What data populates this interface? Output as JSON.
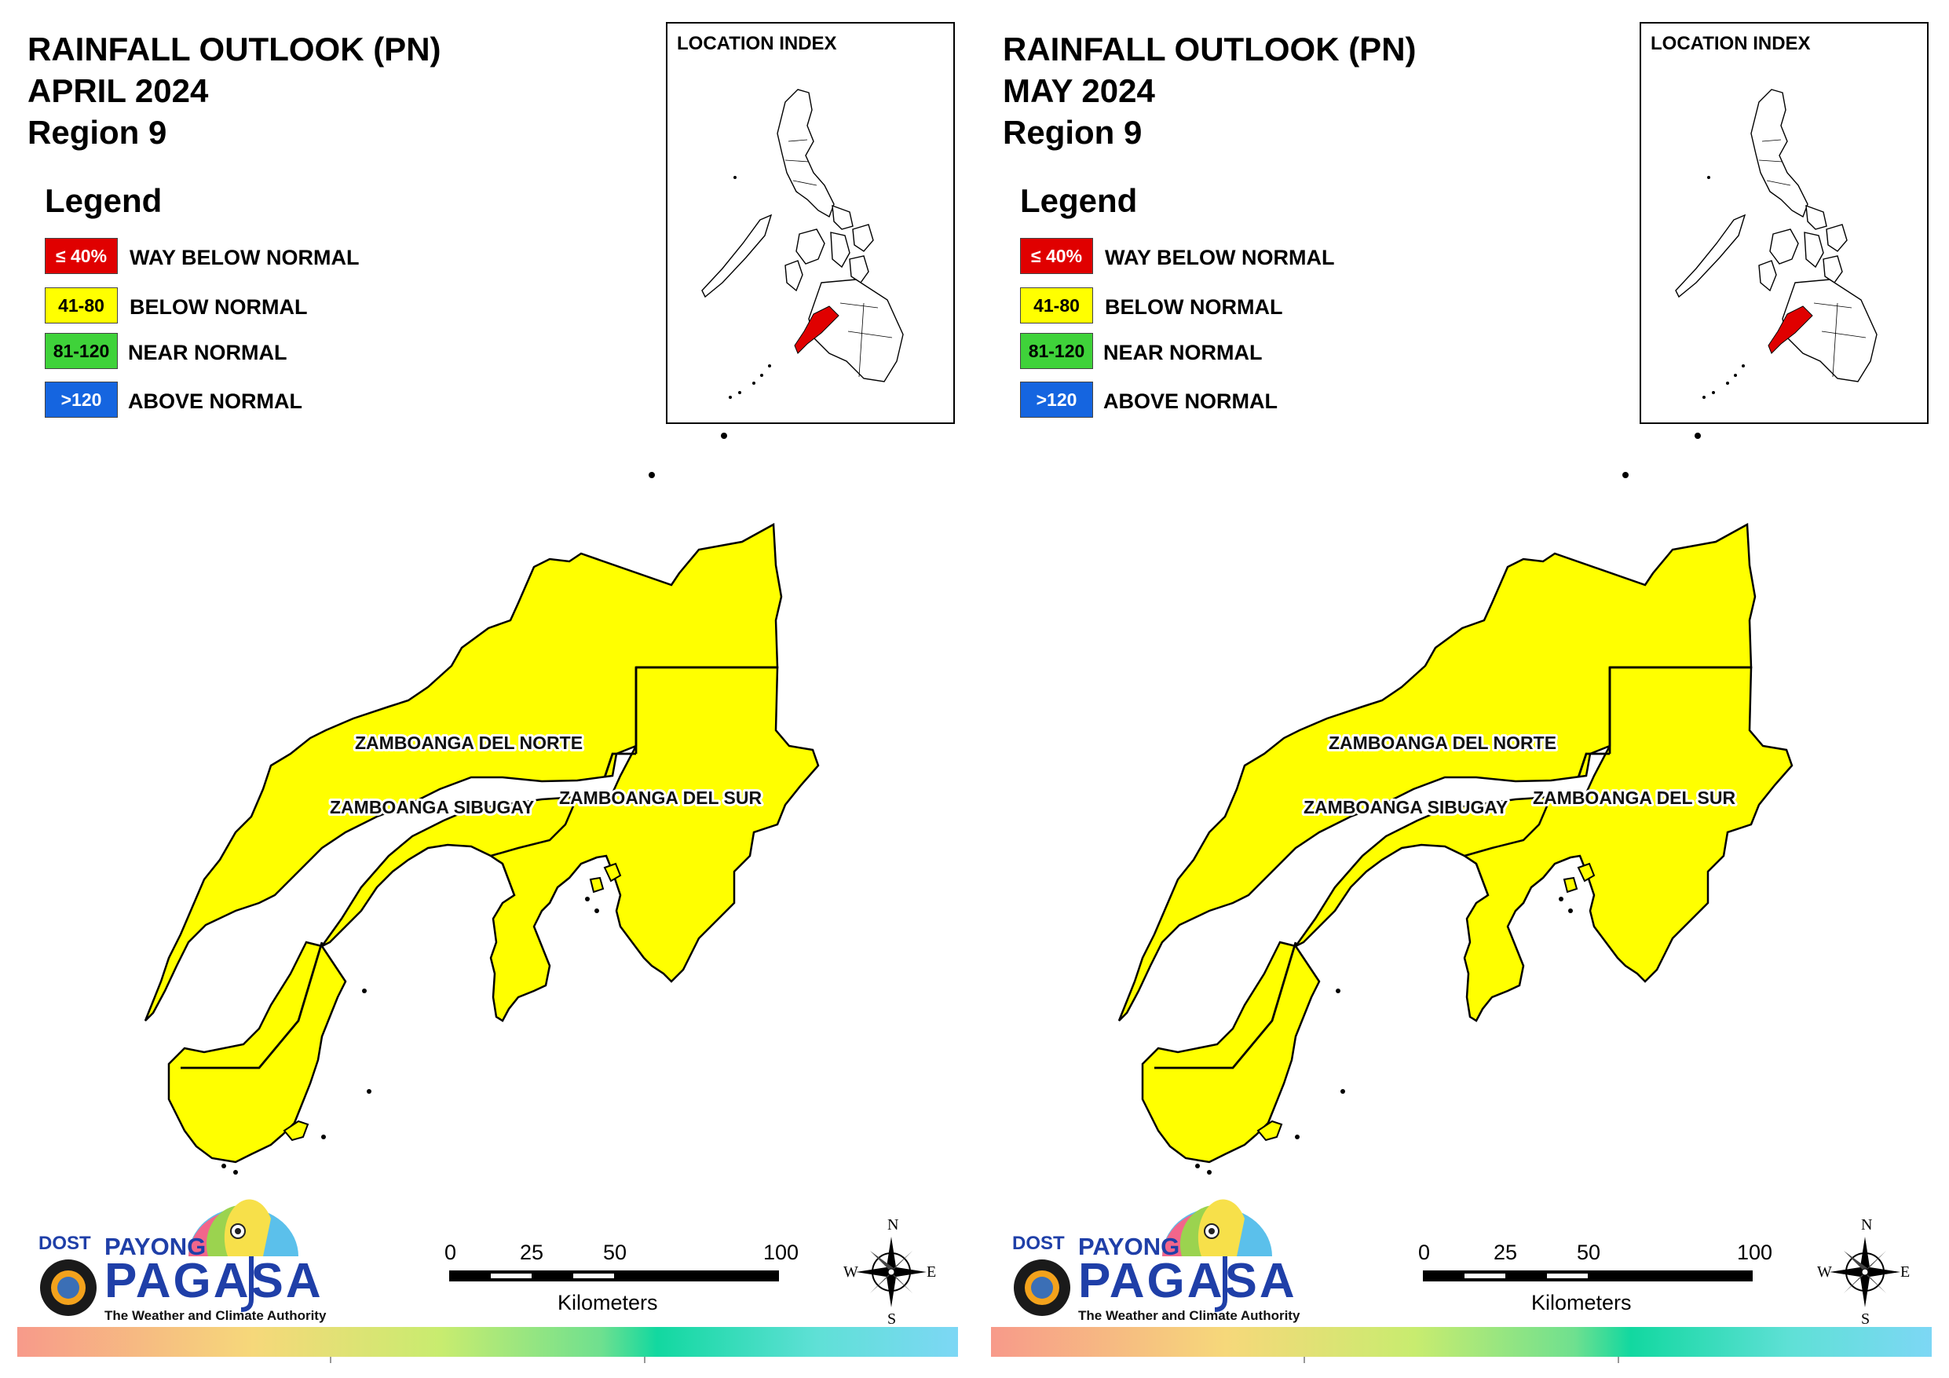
{
  "panels": [
    {
      "title_line1": "RAINFALL OUTLOOK (PN)",
      "title_line2": "APRIL 2024",
      "title_line3": "Region 9",
      "legend_title": "Legend",
      "legend": [
        {
          "code": "≤ 40%",
          "label": "WAY BELOW NORMAL",
          "color": "#e00000",
          "text_color": "#ffffff"
        },
        {
          "code": "41-80",
          "label": "BELOW NORMAL",
          "color": "#ffff00",
          "text_color": "#000000"
        },
        {
          "code": "81-120",
          "label": "NEAR NORMAL",
          "color": "#3fd23a",
          "text_color": "#000000"
        },
        {
          "code": ">120",
          "label": "ABOVE NORMAL",
          "color": "#1565e0",
          "text_color": "#ffffff"
        }
      ],
      "inset_title": "LOCATION INDEX",
      "provinces": [
        {
          "name": "ZAMBOANGA DEL NORTE",
          "category": "BELOW NORMAL",
          "color": "#ffff00"
        },
        {
          "name": "ZAMBOANGA SIBUGAY",
          "category": "BELOW NORMAL",
          "color": "#ffff00"
        },
        {
          "name": "ZAMBOANGA DEL SUR",
          "category": "BELOW NORMAL",
          "color": "#ffff00"
        }
      ],
      "logo": {
        "dost": "DOST",
        "payong": "PAYONG",
        "pagasa": "PAGASA",
        "tagline": "The Weather and Climate Authority"
      },
      "scale": {
        "ticks": [
          "0",
          "25",
          "50",
          "100"
        ],
        "unit": "Kilometers"
      },
      "compass": {
        "n": "N",
        "s": "S",
        "e": "E",
        "w": "W"
      }
    },
    {
      "title_line1": "RAINFALL OUTLOOK (PN)",
      "title_line2": "MAY 2024",
      "title_line3": "Region 9",
      "legend_title": "Legend",
      "legend": [
        {
          "code": "≤ 40%",
          "label": "WAY BELOW NORMAL",
          "color": "#e00000",
          "text_color": "#ffffff"
        },
        {
          "code": "41-80",
          "label": "BELOW NORMAL",
          "color": "#ffff00",
          "text_color": "#000000"
        },
        {
          "code": "81-120",
          "label": "NEAR NORMAL",
          "color": "#3fd23a",
          "text_color": "#000000"
        },
        {
          "code": ">120",
          "label": "ABOVE NORMAL",
          "color": "#1565e0",
          "text_color": "#ffffff"
        }
      ],
      "inset_title": "LOCATION INDEX",
      "provinces": [
        {
          "name": "ZAMBOANGA DEL NORTE",
          "category": "BELOW NORMAL",
          "color": "#ffff00"
        },
        {
          "name": "ZAMBOANGA SIBUGAY",
          "category": "BELOW NORMAL",
          "color": "#ffff00"
        },
        {
          "name": "ZAMBOANGA DEL SUR",
          "category": "BELOW NORMAL",
          "color": "#ffff00"
        }
      ],
      "logo": {
        "dost": "DOST",
        "payong": "PAYONG",
        "pagasa": "PAGASA",
        "tagline": "The Weather and Climate Authority"
      },
      "scale": {
        "ticks": [
          "0",
          "25",
          "50",
          "100"
        ],
        "unit": "Kilometers"
      },
      "compass": {
        "n": "N",
        "s": "S",
        "e": "E",
        "w": "W"
      }
    }
  ]
}
